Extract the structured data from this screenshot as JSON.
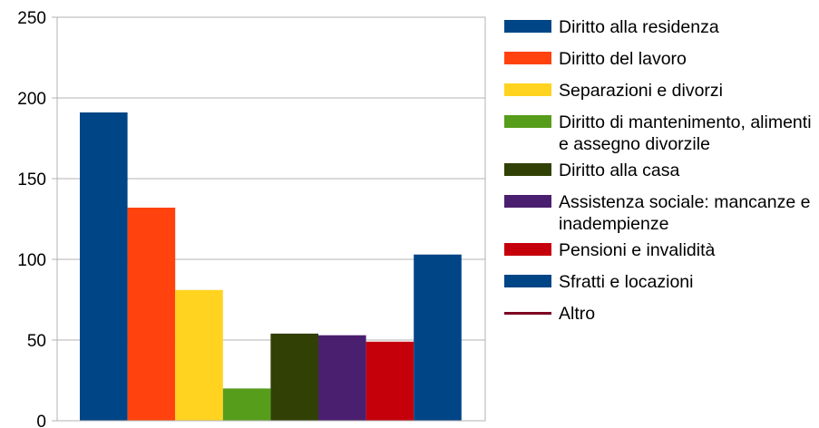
{
  "chart_data": {
    "type": "bar",
    "title": "",
    "xlabel": "",
    "ylabel": "",
    "ylim": [
      0,
      250
    ],
    "yticks": [
      0,
      50,
      100,
      150,
      200,
      250
    ],
    "grid": true,
    "legend_position": "right",
    "series": [
      {
        "name": "Diritto alla residenza",
        "value": 191,
        "color": "#004586",
        "marker": "bar"
      },
      {
        "name": "Diritto del lavoro",
        "value": 132,
        "color": "#ff420e",
        "marker": "bar"
      },
      {
        "name": "Separazioni e divorzi",
        "value": 81,
        "color": "#ffd320",
        "marker": "bar"
      },
      {
        "name": "Diritto di mantenimento, alimenti e assegno divorzile",
        "value": 20,
        "color": "#579d1c",
        "marker": "bar"
      },
      {
        "name": "Diritto alla casa",
        "value": 54,
        "color": "#314004",
        "marker": "bar"
      },
      {
        "name": "Assistenza sociale: mancanze e inadempienze",
        "value": 53,
        "color": "#4b1f6f",
        "marker": "bar"
      },
      {
        "name": "Pensioni e invalidità",
        "value": 49,
        "color": "#c5000b",
        "marker": "bar"
      },
      {
        "name": "Sfratti e locazioni",
        "value": 103,
        "color": "#004586",
        "marker": "bar"
      },
      {
        "name": "Altro",
        "value": null,
        "color": "#7e0021",
        "marker": "line"
      }
    ]
  }
}
